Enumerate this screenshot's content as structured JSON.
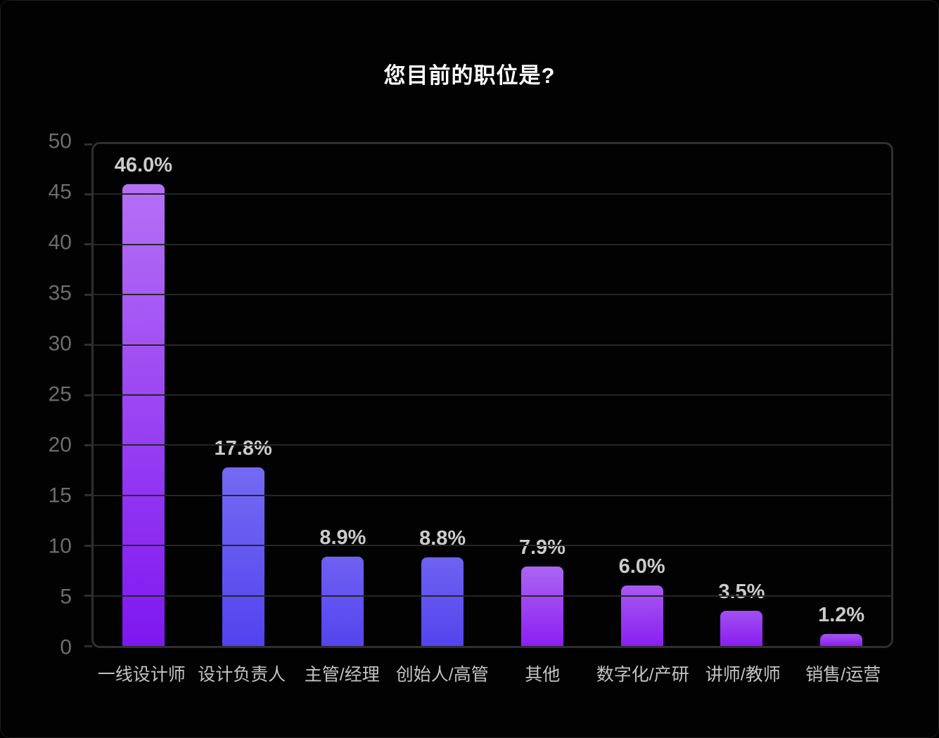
{
  "chart_data": {
    "type": "bar",
    "title": "您目前的职位是?",
    "categories": [
      "一线设计师",
      "设计负责人",
      "主管/经理",
      "创始人/高管",
      "其他",
      "数字化/产研",
      "讲师/教师",
      "销售/运营"
    ],
    "values": [
      46.0,
      17.8,
      8.9,
      8.8,
      7.9,
      6.0,
      3.5,
      1.2
    ],
    "data_labels": [
      "46.0%",
      "17.8%",
      "8.9%",
      "8.8%",
      "7.9%",
      "6.0%",
      "3.5%",
      "1.2%"
    ],
    "xlabel": "",
    "ylabel": "",
    "ylim": [
      0,
      50
    ],
    "yticks": [
      50,
      45,
      40,
      35,
      30,
      25,
      20,
      15,
      10,
      5,
      0
    ],
    "grid": true,
    "legend": false,
    "bar_gradients": [
      {
        "top": "#b570f5",
        "bottom": "#7e17f0"
      },
      {
        "top": "#746af2",
        "bottom": "#5243ee"
      },
      {
        "top": "#6f60f2",
        "bottom": "#5445ee"
      },
      {
        "top": "#6e62f0",
        "bottom": "#5444ee"
      },
      {
        "top": "#ab65f2",
        "bottom": "#8c1ff2"
      },
      {
        "top": "#a75af2",
        "bottom": "#8a1ff0"
      },
      {
        "top": "#a250f2",
        "bottom": "#891ef0"
      },
      {
        "top": "#a355f0",
        "bottom": "#8c1ff0"
      }
    ],
    "colors": {
      "background": "#020202",
      "plot_border": "#2f2f2f",
      "gridline": "#262626",
      "title_text": "#fdfdfd",
      "ytick_text": "#6d6d6d",
      "data_label_text": "#cbcbcb",
      "category_text": "#c3c3c3"
    }
  }
}
